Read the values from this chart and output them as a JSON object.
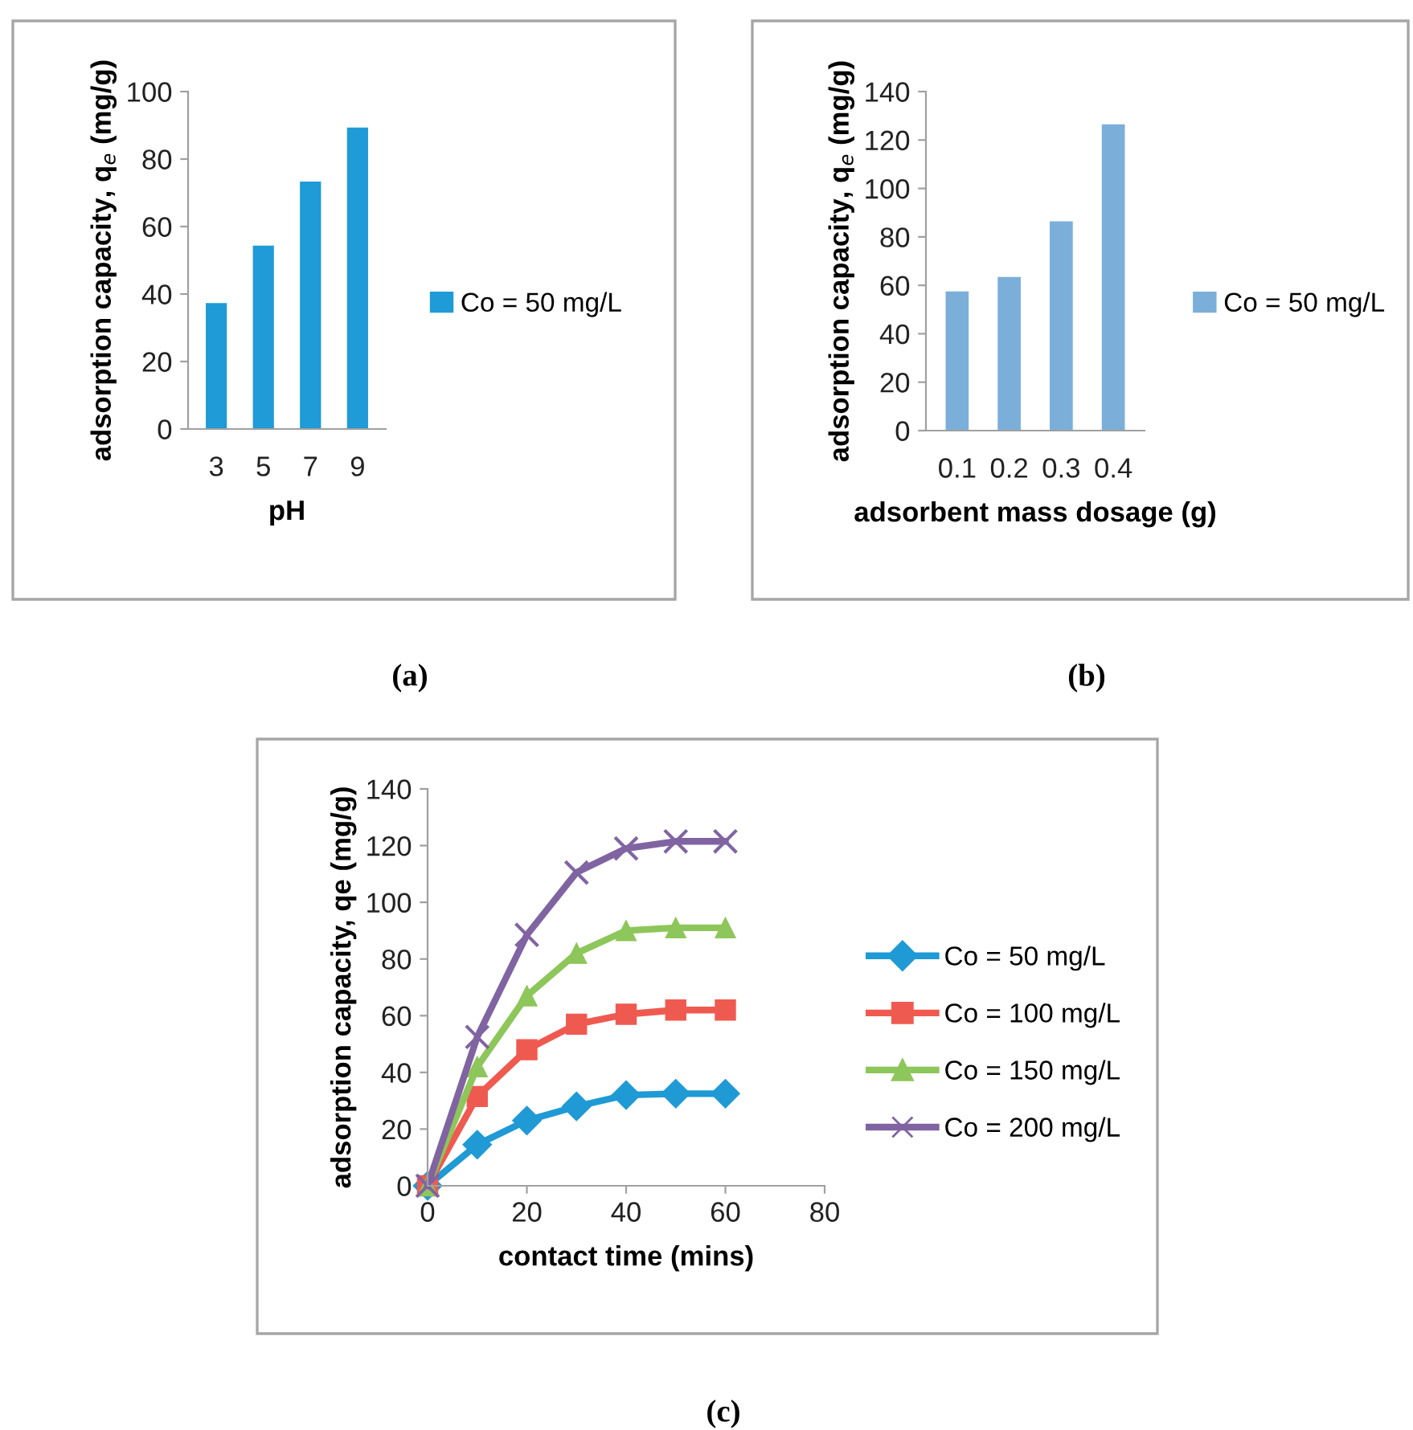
{
  "chart_data": [
    {
      "type": "bar",
      "categories": [
        "3",
        "5",
        "7",
        "9"
      ],
      "xlabel": "pH",
      "ylabel": "adsorption capacity, q$_{e}$ (mg/g)",
      "annotations": [
        "(a)"
      ],
      "ylim": [
        0,
        100
      ],
      "yticks": [
        0,
        20,
        40,
        60,
        80,
        100
      ],
      "grid": false,
      "legend": "right",
      "series": [
        {
          "name": "Co = 50 mg/L",
          "color": "#1f9bd7",
          "values": [
            37,
            54,
            73,
            89
          ]
        }
      ]
    },
    {
      "type": "bar",
      "categories": [
        "0.1",
        "0.2",
        "0.3",
        "0.4"
      ],
      "xlabel": "adsorbent mass dosage (g)",
      "ylabel": "adsorption capacity, q$_{e}$ (mg/g)",
      "annotations": [
        "(b)"
      ],
      "ylim": [
        0,
        140
      ],
      "yticks": [
        0,
        20,
        40,
        60,
        80,
        100,
        120,
        140
      ],
      "grid": false,
      "legend": "right",
      "series": [
        {
          "name": "Co = 50 mg/L",
          "color": "#7bafd9",
          "values": [
            57,
            63,
            86,
            126
          ]
        }
      ]
    },
    {
      "type": "line",
      "x": [
        0,
        10,
        20,
        30,
        40,
        50,
        60
      ],
      "xlabel": "contact time (mins)",
      "ylabel": "adsorption capacity, qe (mg/g)",
      "annotations": [
        "(c)"
      ],
      "xlim": [
        0,
        80
      ],
      "xticks": [
        0,
        20,
        40,
        60,
        80
      ],
      "ylim": [
        0,
        140
      ],
      "yticks": [
        0,
        20,
        40,
        60,
        80,
        100,
        120,
        140
      ],
      "grid": false,
      "legend": "right",
      "series": [
        {
          "name": "Co = 50 mg/L",
          "color": "#1f9ad5",
          "marker": "diamond",
          "values": [
            0,
            14.5,
            23,
            28,
            32,
            32.5,
            32.5
          ]
        },
        {
          "name": "Co = 100 mg/L",
          "color": "#ef5a50",
          "marker": "square",
          "values": [
            0,
            31.5,
            48,
            57,
            60.5,
            62,
            62
          ]
        },
        {
          "name": "Co = 150 mg/L",
          "color": "#8dc65a",
          "marker": "triangle",
          "values": [
            0,
            42,
            67,
            82,
            90,
            91,
            91
          ]
        },
        {
          "name": "Co = 200 mg/L",
          "color": "#8064a2",
          "marker": "cross",
          "values": [
            0,
            52.5,
            88.5,
            110.5,
            119,
            121.5,
            121.5
          ]
        }
      ]
    }
  ]
}
